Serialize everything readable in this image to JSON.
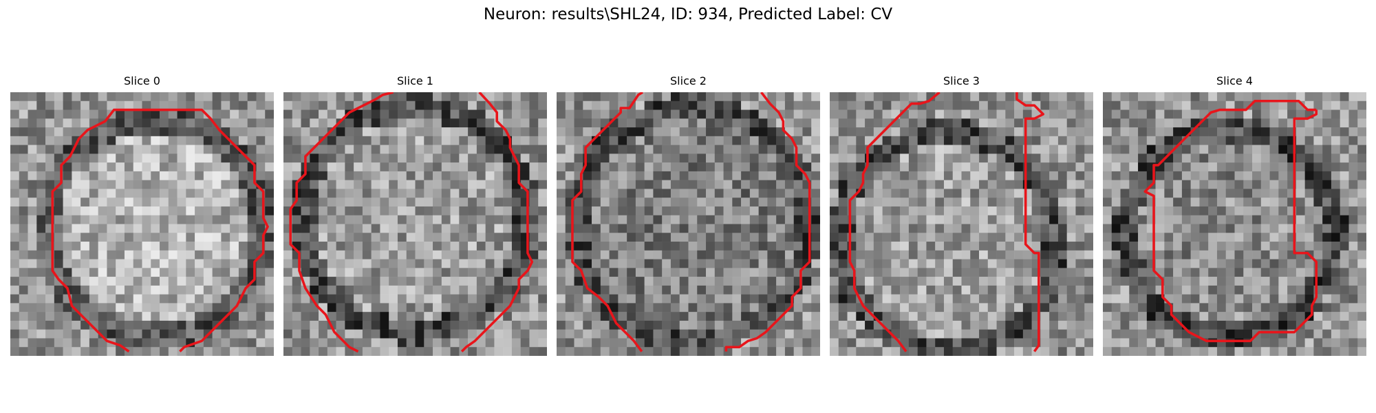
{
  "figure": {
    "title": "Neuron: results\\SHL24, ID: 934, Predicted Label: CV",
    "contour_color": "#e8151b",
    "panels": [
      {
        "title": "Slice 0"
      },
      {
        "title": "Slice 1"
      },
      {
        "title": "Slice 2"
      },
      {
        "title": "Slice 3"
      },
      {
        "title": "Slice 4"
      }
    ]
  }
}
